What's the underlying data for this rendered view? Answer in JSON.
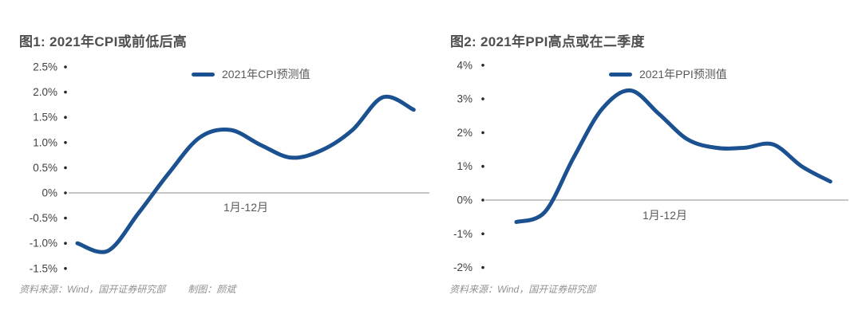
{
  "accent_color": "#1b5190",
  "chart_data": [
    {
      "type": "line",
      "title": "图1: 2021年CPI或前低后高",
      "x_axis_label": "1月-12月",
      "x": [
        1,
        2,
        3,
        4,
        5,
        6,
        7,
        8,
        9,
        10,
        11,
        12
      ],
      "series": [
        {
          "name": "2021年CPI预测值",
          "values": [
            -1.0,
            -1.15,
            -0.4,
            0.4,
            1.1,
            1.25,
            0.95,
            0.7,
            0.85,
            1.25,
            1.9,
            1.65
          ],
          "color": "#1b5190"
        }
      ],
      "unit": "%",
      "ylim": [
        -1.5,
        2.5
      ],
      "grid": false,
      "legend_position": "top-center",
      "y_ticks": [
        {
          "label": "2.5%",
          "value": 2.5
        },
        {
          "label": "2.0%",
          "value": 2.0
        },
        {
          "label": "1.5%",
          "value": 1.5
        },
        {
          "label": "1.0%",
          "value": 1.0
        },
        {
          "label": "0.5%",
          "value": 0.5
        },
        {
          "label": "0%",
          "value": 0
        },
        {
          "label": "-0.5%",
          "value": -0.5
        },
        {
          "label": "-1.0%",
          "value": -1.0
        },
        {
          "label": "-1.5%",
          "value": -1.5
        }
      ],
      "source": "资料来源：Wind，国开证券研究部",
      "credit": "制图：颜斌"
    },
    {
      "type": "line",
      "title": "图2: 2021年PPI高点或在二季度",
      "x_axis_label": "1月-12月",
      "x": [
        1,
        2,
        3,
        4,
        5,
        6,
        7,
        8,
        9,
        10,
        11,
        12
      ],
      "series": [
        {
          "name": "2021年PPI预测值",
          "values": [
            -0.65,
            -0.35,
            1.25,
            2.7,
            3.25,
            2.55,
            1.8,
            1.55,
            1.55,
            1.65,
            1.0,
            0.55
          ],
          "color": "#1b5190"
        }
      ],
      "unit": "%",
      "ylim": [
        -2,
        4
      ],
      "grid": false,
      "legend_position": "top-center",
      "y_ticks": [
        {
          "label": "4%",
          "value": 4
        },
        {
          "label": "3%",
          "value": 3
        },
        {
          "label": "2%",
          "value": 2
        },
        {
          "label": "1%",
          "value": 1
        },
        {
          "label": "0%",
          "value": 0
        },
        {
          "label": "-1%",
          "value": -1
        },
        {
          "label": "-2%",
          "value": -2
        }
      ],
      "source": "资料来源：Wind，国开证券研究部"
    }
  ]
}
